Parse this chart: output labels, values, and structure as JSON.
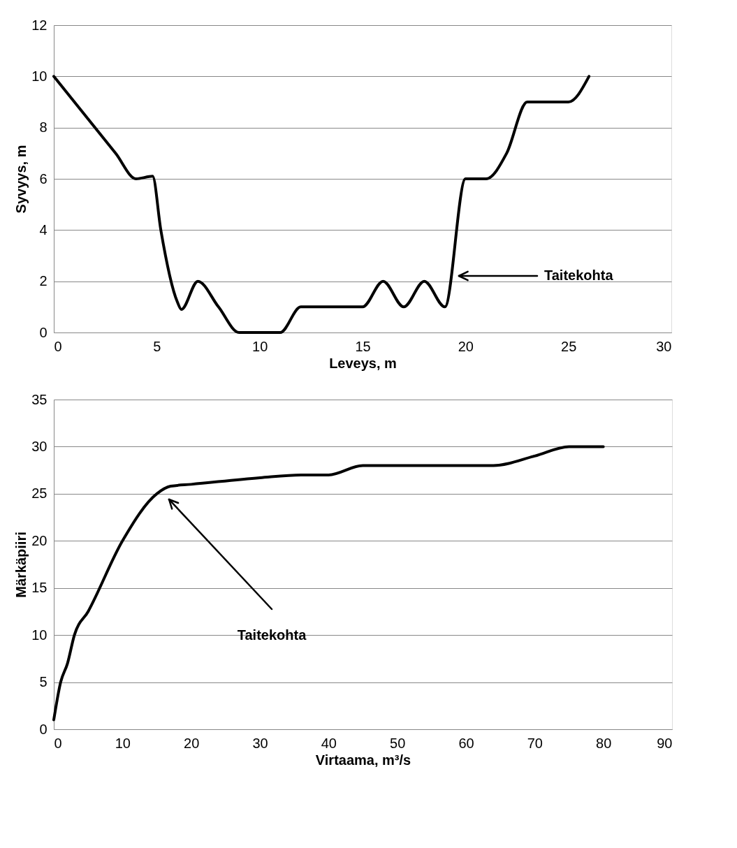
{
  "chart_data": [
    {
      "type": "line",
      "xlabel": "Leveys, m",
      "ylabel": "Syvyys, m",
      "xlim": [
        0,
        30
      ],
      "xticks": [
        0,
        5,
        10,
        15,
        20,
        25,
        30
      ],
      "ylim": [
        0,
        12
      ],
      "yticks": [
        0,
        2,
        4,
        6,
        8,
        10,
        12
      ],
      "grid": "y",
      "legend": false,
      "marker": "none",
      "line_style": "solid",
      "series": [
        {
          "color": "#000000",
          "x": [
            0,
            3,
            4,
            4.8,
            5.2,
            6,
            6.2,
            7,
            8,
            9,
            10,
            11,
            12,
            13,
            14,
            15,
            16,
            17,
            18,
            19,
            20,
            21,
            22,
            23,
            24,
            25,
            26
          ],
          "values": [
            10,
            7,
            6,
            6.1,
            4,
            1.2,
            0.9,
            2,
            1,
            0,
            0,
            0,
            1,
            1,
            1,
            1,
            2,
            1,
            2,
            1,
            6,
            6,
            7,
            9,
            9,
            9,
            10
          ]
        }
      ],
      "annotations": [
        "Taitekohta"
      ]
    },
    {
      "type": "line",
      "xlabel": "Virtaama, m³/s",
      "ylabel": "Märkäpiiri",
      "xlim": [
        0,
        90
      ],
      "xticks": [
        0,
        10,
        20,
        30,
        40,
        50,
        60,
        70,
        80,
        90
      ],
      "ylim": [
        0,
        35
      ],
      "yticks": [
        0,
        5,
        10,
        15,
        20,
        25,
        30,
        35
      ],
      "grid": "y",
      "legend": false,
      "marker": "none",
      "line_style": "solid",
      "series": [
        {
          "color": "#000000",
          "x": [
            0,
            1,
            2,
            3,
            5,
            10,
            15,
            17,
            20,
            30,
            36,
            40,
            45,
            50,
            60,
            64,
            70,
            75,
            80
          ],
          "values": [
            1,
            5,
            7,
            10,
            12.5,
            20,
            25,
            25.8,
            26,
            26.7,
            27,
            27,
            28,
            28,
            28,
            28,
            29,
            30,
            30
          ]
        }
      ],
      "annotations": [
        "Taitekohta"
      ]
    }
  ]
}
